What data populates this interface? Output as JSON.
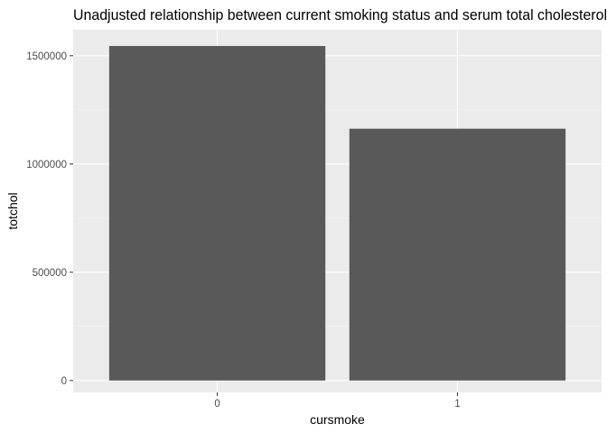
{
  "chart_data": {
    "type": "bar",
    "title": "Unadjusted relationship between current smoking status and serum total cholesterol",
    "xlabel": "cursmoke",
    "ylabel": "totchol",
    "categories": [
      "0",
      "1"
    ],
    "values": [
      1545000,
      1163000
    ],
    "ylim": [
      -55000,
      1620000
    ],
    "yticks": [
      0,
      500000,
      1000000,
      1500000
    ],
    "ytick_labels": [
      "0",
      "500000",
      "1000000",
      "1500000"
    ],
    "grid": true,
    "legend": "none",
    "colors": {
      "bar": "#595959",
      "panel": "#ebebeb",
      "grid_major": "#ffffff",
      "grid_minor": "#f5f5f5",
      "tick": "#333333"
    }
  }
}
